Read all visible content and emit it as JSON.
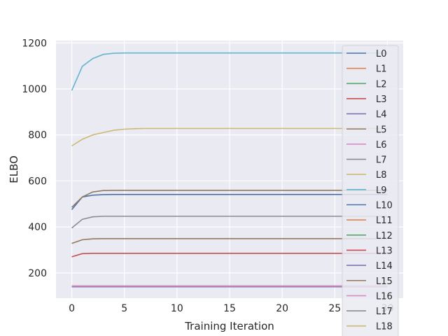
{
  "chart_data": {
    "type": "line",
    "xlabel": "Training Iteration",
    "ylabel": "ELBO",
    "xlim": [
      -1.5,
      31.5
    ],
    "ylim": [
      90,
      1210
    ],
    "xticks": [
      0,
      5,
      10,
      15,
      20,
      25,
      30
    ],
    "yticks": [
      200,
      400,
      600,
      800,
      1000,
      1200
    ],
    "grid": true,
    "legend_position": "right",
    "x": [
      0,
      1,
      2,
      3,
      4,
      5,
      6,
      7,
      8,
      9,
      10,
      11,
      12,
      13,
      14,
      15,
      16,
      17,
      18,
      19,
      20,
      21,
      22,
      23,
      24,
      25,
      26,
      27,
      28,
      29,
      30
    ],
    "series": [
      {
        "name": "L0",
        "color": "#4c72b0",
        "start": [
          475,
          530,
          538,
          540
        ],
        "final": 541
      },
      {
        "name": "L1",
        "color": "#dd8452",
        "start": [
          140
        ],
        "final": 140
      },
      {
        "name": "L2",
        "color": "#55a868",
        "start": [
          140
        ],
        "final": 140
      },
      {
        "name": "L3",
        "color": "#c44e52",
        "start": [
          140
        ],
        "final": 140
      },
      {
        "name": "L4",
        "color": "#8172b3",
        "start": [
          140
        ],
        "final": 140
      },
      {
        "name": "L5",
        "color": "#937860",
        "start": [
          485,
          530,
          552,
          558
        ],
        "final": 559
      },
      {
        "name": "L6",
        "color": "#da8bc3",
        "start": [
          143
        ],
        "final": 143
      },
      {
        "name": "L7",
        "color": "#8c8c8c",
        "start": [
          143
        ],
        "final": 143
      },
      {
        "name": "L8",
        "color": "#ccb974",
        "start": [
          143
        ],
        "final": 143
      },
      {
        "name": "L9",
        "color": "#64b5cd",
        "start": [
          993,
          1098,
          1132,
          1150,
          1155
        ],
        "final": 1156
      },
      {
        "name": "L10",
        "color": "#4c72b0",
        "start": [
          140
        ],
        "final": 140
      },
      {
        "name": "L11",
        "color": "#dd8452",
        "start": [
          140
        ],
        "final": 140
      },
      {
        "name": "L12",
        "color": "#55a868",
        "start": [
          140
        ],
        "final": 140
      },
      {
        "name": "L13",
        "color": "#c44e52",
        "start": [
          270,
          284
        ],
        "final": 285
      },
      {
        "name": "L14",
        "color": "#8172b3",
        "start": [
          140
        ],
        "final": 140
      },
      {
        "name": "L15",
        "color": "#937860",
        "start": [
          328,
          344,
          348
        ],
        "final": 349
      },
      {
        "name": "L16",
        "color": "#da8bc3",
        "start": [
          143
        ],
        "final": 143
      },
      {
        "name": "L17",
        "color": "#8c8c8c",
        "start": [
          395,
          433,
          444
        ],
        "final": 446
      },
      {
        "name": "L18",
        "color": "#ccb974",
        "start": [
          752,
          781,
          800,
          810,
          820,
          825,
          827
        ],
        "final": 828
      }
    ]
  }
}
